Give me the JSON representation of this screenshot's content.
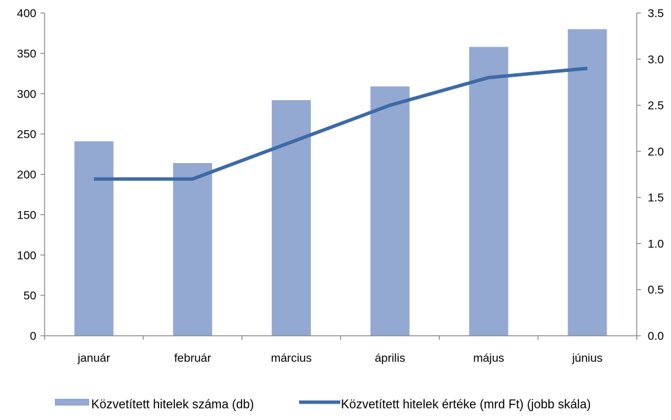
{
  "chart_data": {
    "type": "bar",
    "categories": [
      "január",
      "február",
      "március",
      "április",
      "május",
      "június"
    ],
    "series": [
      {
        "name": "Közvetített hitelek száma (db)",
        "type": "bar",
        "axis": "left",
        "color": "#93a9d1",
        "values": [
          241,
          214,
          292,
          309,
          358,
          380
        ]
      },
      {
        "name": "Közvetített hitelek értéke (mrd Ft) (jobb skála)",
        "type": "line",
        "axis": "right",
        "color": "#3d6aa6",
        "values": [
          1.7,
          1.7,
          2.1,
          2.5,
          2.8,
          2.9
        ]
      }
    ],
    "y_left": {
      "range": [
        0,
        400
      ],
      "ticks": [
        "0",
        "50",
        "100",
        "150",
        "200",
        "250",
        "300",
        "350",
        "400"
      ]
    },
    "y_right": {
      "range": [
        0,
        3.5
      ],
      "ticks": [
        "0.0",
        "0.5",
        "1.0",
        "1.5",
        "2.0",
        "2.5",
        "3.0",
        "3.5"
      ]
    },
    "grid": false,
    "legend_position": "bottom"
  }
}
